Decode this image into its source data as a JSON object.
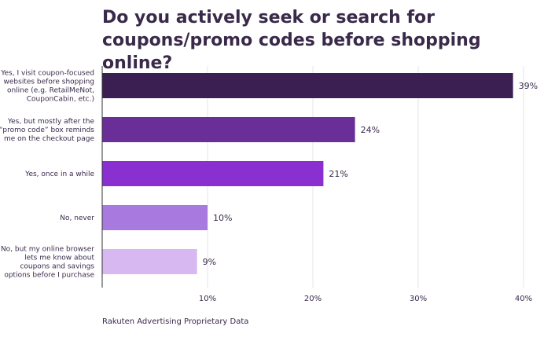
{
  "chart_data": {
    "type": "bar",
    "orientation": "horizontal",
    "title_lines": [
      "Do you actively seek or search for",
      "coupons/promo codes before shopping online?"
    ],
    "categories": [
      [
        "Yes, I visit coupon-focused",
        "websites before shopping",
        "online (e.g. RetailMeNot,",
        "CouponCabin, etc.)"
      ],
      [
        "Yes, but mostly after the",
        "“promo code” box reminds",
        "me on the checkout page"
      ],
      [
        "Yes, once in a while"
      ],
      [
        "No, never"
      ],
      [
        "No, but my online browser",
        "lets me know about",
        "coupons and savings",
        "options before I purchase"
      ]
    ],
    "values": [
      39,
      24,
      21,
      10,
      9
    ],
    "value_labels": [
      "39%",
      "24%",
      "21%",
      "10%",
      "9%"
    ],
    "bar_colors": [
      "#3b1f52",
      "#6a2e98",
      "#8a2fd0",
      "#a87ae0",
      "#d8b8f0"
    ],
    "xlim": [
      0,
      40
    ],
    "xticks": [
      10,
      20,
      30,
      40
    ],
    "xtick_labels": [
      "10%",
      "20%",
      "30%",
      "40%"
    ],
    "grid": true,
    "legend": "none"
  },
  "source": "Rakuten Advertising Proprietary Data",
  "colors": {
    "text": "#3a2a4a",
    "grid": "#e6e6e6",
    "axis": "#333333"
  }
}
